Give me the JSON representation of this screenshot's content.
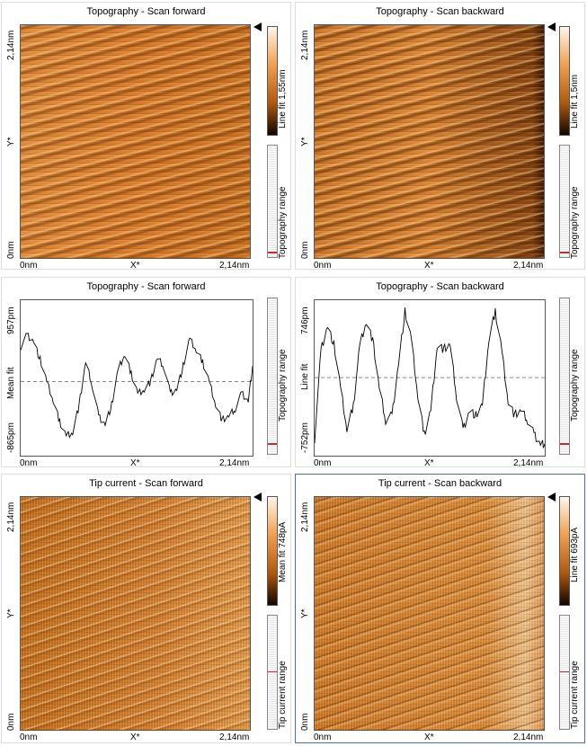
{
  "panels": [
    {
      "title": "Topography - Scan forward",
      "x_start": "0nm",
      "x_mid": "X*",
      "x_end": "2,14nm",
      "y_start": "0nm",
      "y_mid": "Y*",
      "y_end": "2,14nm",
      "colorbar_label": "Line fit 1,55nm",
      "range_label": "Topography range"
    },
    {
      "title": "Topography - Scan backward",
      "x_start": "0nm",
      "x_mid": "X*",
      "x_end": "2,14nm",
      "y_start": "0nm",
      "y_mid": "Y*",
      "y_end": "2,14nm",
      "colorbar_label": "Line fit 1,5nm",
      "range_label": "Topography range"
    },
    {
      "title": "Topography - Scan forward",
      "x_start": "0nm",
      "x_mid": "X*",
      "x_end": "2,14nm",
      "y_top": "957pm",
      "y_mid": "Mean fit",
      "y_bottom": "-865pm",
      "range_label": "Topography range"
    },
    {
      "title": "Topography - Scan backward",
      "x_start": "0nm",
      "x_mid": "X*",
      "x_end": "2,14nm",
      "y_top": "746pm",
      "y_mid": "Line fit",
      "y_bottom": "-752pm",
      "range_label": "Topography range"
    },
    {
      "title": "Tip current - Scan forward",
      "x_start": "0nm",
      "x_mid": "X*",
      "x_end": "2,14nm",
      "y_start": "0nm",
      "y_mid": "Y*",
      "y_end": "2,14nm",
      "colorbar_label": "Mean fit 748pA",
      "range_label": "Tip current range"
    },
    {
      "title": "Tip current - Scan backward",
      "x_start": "0nm",
      "x_mid": "X*",
      "x_end": "2,14nm",
      "y_start": "0nm",
      "y_mid": "Y*",
      "y_end": "2,14nm",
      "colorbar_label": "Line fit 693pA",
      "range_label": "Tip current range"
    }
  ],
  "chart_data": [
    {
      "type": "line",
      "title": "Topography - Scan forward",
      "xlabel": "X*",
      "ylabel": "Mean fit",
      "xlim": [
        0,
        2.14
      ],
      "ylim": [
        -865,
        957
      ],
      "x": [
        0,
        0.06,
        0.12,
        0.18,
        0.24,
        0.3,
        0.36,
        0.42,
        0.48,
        0.54,
        0.6,
        0.66,
        0.72,
        0.78,
        0.84,
        0.9,
        0.96,
        1.02,
        1.08,
        1.14,
        1.2,
        1.26,
        1.32,
        1.38,
        1.44,
        1.5,
        1.56,
        1.62,
        1.68,
        1.74,
        1.8,
        1.86,
        1.92,
        1.98,
        2.04,
        2.1,
        2.14
      ],
      "y": [
        450,
        600,
        520,
        280,
        0,
        -250,
        -520,
        -700,
        -650,
        -300,
        250,
        -50,
        -450,
        -550,
        -300,
        150,
        350,
        100,
        -150,
        -100,
        0,
        300,
        200,
        -150,
        -100,
        200,
        550,
        400,
        250,
        0,
        -300,
        -500,
        -450,
        -350,
        -150,
        -250,
        200
      ],
      "series": [
        {
          "values": [
            450,
            600,
            520,
            280,
            0,
            -250,
            -520,
            -700,
            -650,
            -300,
            250,
            -50,
            -450,
            -550,
            -300,
            150,
            350,
            100,
            -150,
            -100,
            0,
            300,
            200,
            -150,
            -100,
            200,
            550,
            400,
            250,
            0,
            -300,
            -500,
            -450,
            -350,
            -150,
            -250,
            200
          ]
        }
      ]
    },
    {
      "type": "line",
      "title": "Topography - Scan backward",
      "xlabel": "X*",
      "ylabel": "Line fit",
      "xlim": [
        0,
        2.14
      ],
      "ylim": [
        -752,
        746
      ],
      "x": [
        0,
        0.06,
        0.12,
        0.18,
        0.24,
        0.3,
        0.36,
        0.42,
        0.48,
        0.54,
        0.6,
        0.66,
        0.72,
        0.78,
        0.84,
        0.9,
        0.96,
        1.02,
        1.08,
        1.14,
        1.2,
        1.26,
        1.32,
        1.38,
        1.44,
        1.5,
        1.56,
        1.62,
        1.68,
        1.74,
        1.8,
        1.86,
        1.92,
        1.98,
        2.04,
        2.1,
        2.14
      ],
      "y": [
        -650,
        300,
        550,
        350,
        -100,
        -550,
        -300,
        350,
        600,
        400,
        -100,
        -450,
        -400,
        150,
        700,
        400,
        -200,
        -600,
        -350,
        350,
        300,
        350,
        -200,
        -550,
        -350,
        -400,
        -300,
        400,
        700,
        300,
        -250,
        -400,
        -350,
        -450,
        -600,
        -700,
        -700
      ],
      "series": [
        {
          "values": [
            -650,
            300,
            550,
            350,
            -100,
            -550,
            -300,
            350,
            600,
            400,
            -100,
            -450,
            -400,
            150,
            700,
            400,
            -200,
            -600,
            -350,
            350,
            300,
            350,
            -200,
            -550,
            -350,
            -400,
            -300,
            400,
            700,
            300,
            -250,
            -400,
            -350,
            -450,
            -600,
            -700,
            -700
          ]
        }
      ]
    }
  ]
}
